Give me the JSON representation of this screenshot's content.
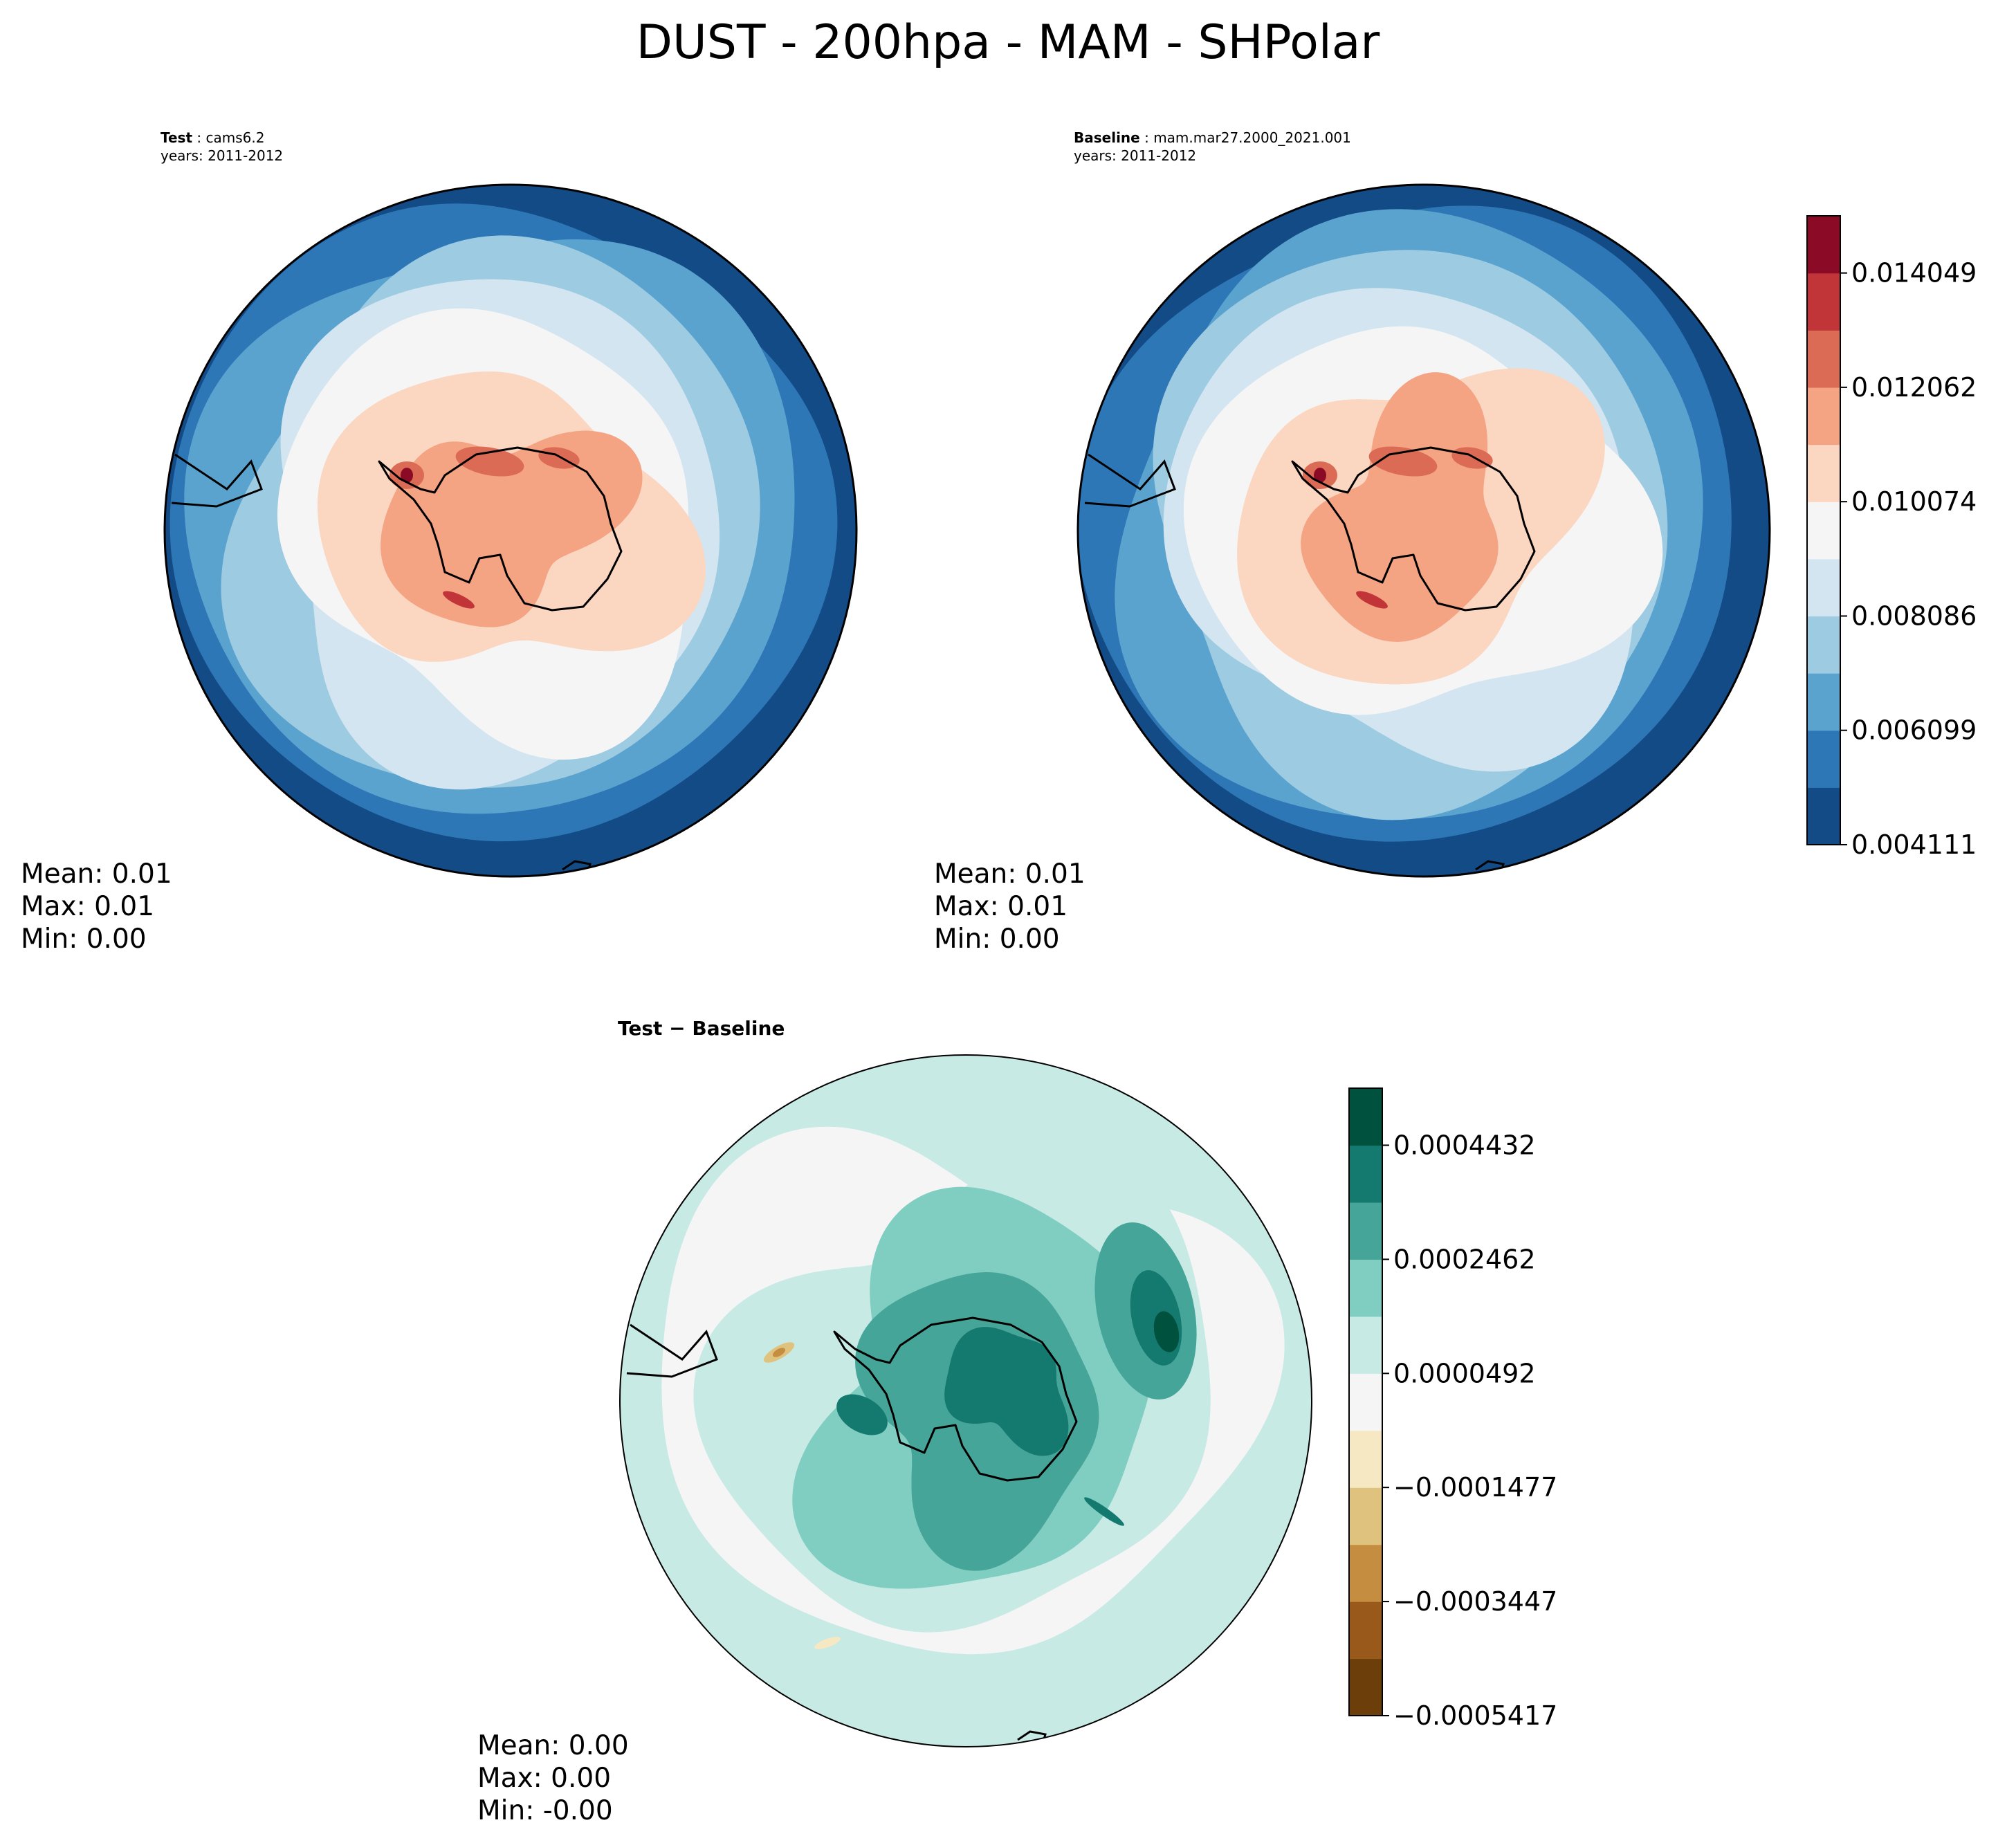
{
  "figure": {
    "title": "DUST - 200hpa - MAM - SHPolar"
  },
  "panels": {
    "test": {
      "case_label": "Test",
      "case_name": "cams6.2",
      "years": "years: 2011-2012",
      "stats": {
        "mean": "Mean:  0.01",
        "max": "Max:  0.01",
        "min": "Min:  0.00"
      }
    },
    "baseline": {
      "case_label": "Baseline",
      "case_name": "mam.mar27.2000_2021.001",
      "years": "years: 2011-2012",
      "stats": {
        "mean": "Mean:  0.01",
        "max": "Max:  0.01",
        "min": "Min:  0.00"
      }
    },
    "diff": {
      "title": "Test − Baseline",
      "stats": {
        "mean": "Mean:  0.00",
        "max": "Max:  0.00",
        "min": "Min: -0.00"
      }
    }
  },
  "chart_data": [
    {
      "type": "heatmap",
      "projection": "south-polar-stereographic",
      "panel": "test",
      "variable": "DUST",
      "level": "200hpa",
      "season": "MAM",
      "region": "SHPolar",
      "cmap": "RdBu_r",
      "levels_min": 0.004111,
      "levels_max": 0.015043,
      "colorbar_ticks": [
        0.004111,
        0.006099,
        0.008086,
        0.010074,
        0.012062,
        0.014049
      ],
      "colorbar_tick_labels": [
        "0.004111",
        "0.006099",
        "0.008086",
        "0.010074",
        "0.012062",
        "0.014049"
      ],
      "mean": 0.01,
      "max": 0.01,
      "min": 0.0
    },
    {
      "type": "heatmap",
      "projection": "south-polar-stereographic",
      "panel": "baseline",
      "cmap": "RdBu_r",
      "levels_min": 0.004111,
      "levels_max": 0.015043,
      "mean": 0.01,
      "max": 0.01,
      "min": 0.0
    },
    {
      "type": "heatmap",
      "projection": "south-polar-stereographic",
      "panel": "diff",
      "cmap": "BrBG",
      "levels_min": -0.0005417,
      "levels_max": 0.0005417,
      "colorbar_ticks": [
        -0.0005417,
        -0.0003447,
        -0.0001477,
        4.92e-05,
        0.0002462,
        0.0004432
      ],
      "colorbar_tick_labels": [
        "−0.0005417",
        "−0.0003447",
        "−0.0001477",
        "0.0000492",
        "0.0002462",
        "0.0004432"
      ],
      "mean": 0.0,
      "max": 0.0,
      "min": -0.0
    }
  ],
  "colors": {
    "seq": [
      "#134b87",
      "#2e77b7",
      "#5ba3cf",
      "#9dcbe1",
      "#d2e5f0",
      "#f5f5f5",
      "#fbd6c1",
      "#f4a383",
      "#db6b55",
      "#c13539",
      "#8b0a26"
    ],
    "div": [
      "#6b3e0a",
      "#98591b",
      "#c48d3f",
      "#dfc27d",
      "#f6e8c3",
      "#f5f5f5",
      "#c7eae5",
      "#80cdc1",
      "#46a599",
      "#147a70",
      "#01513f"
    ],
    "coast": "#000000"
  }
}
